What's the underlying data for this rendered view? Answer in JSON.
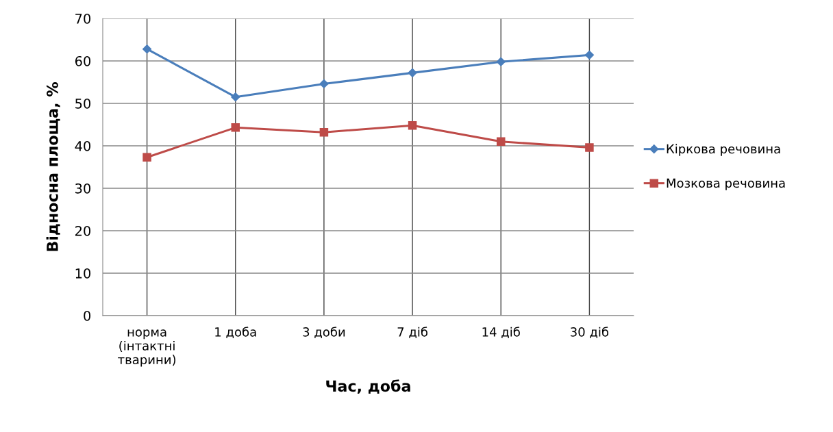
{
  "chart_data": {
    "type": "line",
    "xlabel": "Час, доба",
    "ylabel": "Відносна площа, %",
    "categories": [
      "норма\n(інтактні\nтварини)",
      "1 доба",
      "3 доби",
      "7 діб",
      "14 діб",
      "30 діб"
    ],
    "series": [
      {
        "name": "Кіркова речовина",
        "color": "#4a7ebb",
        "marker": "diamond",
        "values": [
          62.8,
          51.5,
          54.6,
          57.2,
          59.8,
          61.4
        ]
      },
      {
        "name": "Мозкова речовина",
        "color": "#be4b48",
        "marker": "square",
        "values": [
          37.3,
          44.3,
          43.2,
          44.8,
          41.0,
          39.6
        ]
      }
    ],
    "ylim": [
      0,
      70
    ],
    "yticks": [
      0,
      10,
      20,
      30,
      40,
      50,
      60,
      70
    ],
    "grid": true,
    "legend": "right",
    "line_style": "solid"
  }
}
